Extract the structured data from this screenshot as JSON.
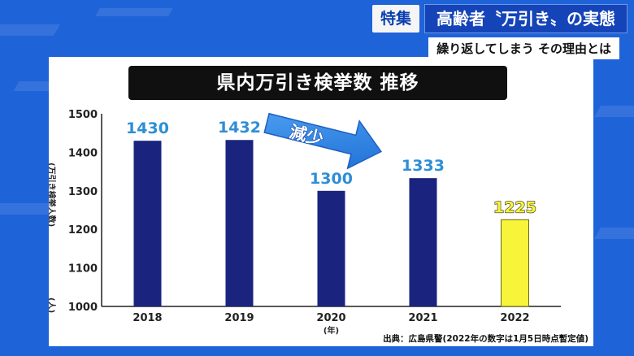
{
  "header": {
    "tag": "特集",
    "title": "高齢者〝万引き〟の実態",
    "subtitle": "繰り返してしまう その理由とは"
  },
  "chart_panel": {
    "title": "県内万引き検挙数 推移",
    "arrow_label": "減少",
    "source": "出典：広島県警(2022年の数字は1月5日時点暫定値)"
  },
  "chart_data": {
    "type": "bar",
    "title": "県内万引き検挙数 推移",
    "categories": [
      "2018",
      "2019",
      "2020",
      "2021",
      "2022"
    ],
    "values": [
      1430,
      1432,
      1300,
      1333,
      1225
    ],
    "ylabel": "(万引き検挙人数)",
    "yunit": "(人)",
    "xunit": "(年)",
    "ylim": [
      1000,
      1500
    ],
    "yticks": [
      1000,
      1100,
      1200,
      1300,
      1400,
      1500
    ],
    "grid": false,
    "colors": {
      "bar": "#1a237e",
      "highlight_bar": "#f7f43a",
      "label": "#2e8ed6"
    },
    "highlight_index": 4
  },
  "colors": {
    "background": "#1f63d8",
    "title_bar": "#1544b8",
    "arrow": "#2f86e8"
  }
}
